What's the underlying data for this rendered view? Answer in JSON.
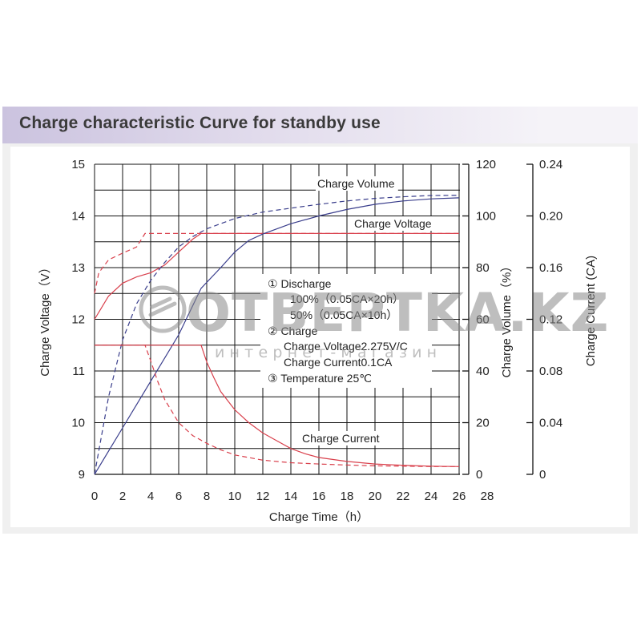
{
  "header": {
    "title": "Charge characteristic Curve for standby use"
  },
  "watermark": {
    "brand": "OTBEPTKA.KZ",
    "sub": "интернет-магазин"
  },
  "colors": {
    "voltage": "#d9404c",
    "volume": "#3a3e8c",
    "current": "#d9404c",
    "grid": "#111111",
    "header": "#cbc3df"
  },
  "chart_data": {
    "type": "line",
    "title": "Charge characteristic Curve for standby use",
    "xlabel": "Charge Time（h）",
    "x_ticks": [
      0,
      2,
      4,
      6,
      8,
      10,
      12,
      14,
      16,
      18,
      20,
      22,
      24,
      26,
      28
    ],
    "xlim": [
      0,
      26
    ],
    "y_left": {
      "label": "Charge Voltage（V）",
      "range": [
        9,
        15
      ],
      "ticks": [
        9,
        10,
        11,
        12,
        13,
        14,
        15
      ]
    },
    "y_right_1": {
      "label": "Charge Volume（%）",
      "range": [
        0,
        120
      ],
      "ticks": [
        0,
        20,
        40,
        60,
        80,
        100,
        120
      ]
    },
    "y_right_2": {
      "label": "Charge Current (CA)",
      "range": [
        0,
        0.24
      ],
      "ticks": [
        "0",
        "0.04",
        "0.08",
        "0.12",
        "0.16",
        "0.20",
        "0.24"
      ]
    },
    "grid": true,
    "curve_labels": [
      "Charge Volume",
      "Charge Voltage",
      "Charge Current"
    ],
    "annotations": [
      "① Discharge",
      "100%（0.05CA×20h）",
      "50%（0.05CA×10h）",
      "② Charge",
      "Charge Voltage2.275V/C",
      "Charge Current0.1CA",
      "③ Temperature 25℃"
    ],
    "series": [
      {
        "curve": "Charge Voltage",
        "discharge": "100%",
        "dash": false,
        "axis": "left",
        "points": [
          [
            0,
            12.0
          ],
          [
            1,
            12.45
          ],
          [
            2,
            12.7
          ],
          [
            3,
            12.82
          ],
          [
            4,
            12.9
          ],
          [
            5,
            13.05
          ],
          [
            6,
            13.3
          ],
          [
            7,
            13.55
          ],
          [
            7.6,
            13.66
          ],
          [
            9,
            13.66
          ],
          [
            12,
            13.66
          ],
          [
            16,
            13.66
          ],
          [
            20,
            13.66
          ],
          [
            24,
            13.66
          ],
          [
            26,
            13.66
          ]
        ]
      },
      {
        "curve": "Charge Voltage",
        "discharge": "50%",
        "dash": true,
        "axis": "left",
        "points": [
          [
            0,
            12.5
          ],
          [
            0.3,
            12.9
          ],
          [
            1,
            13.15
          ],
          [
            2,
            13.28
          ],
          [
            3,
            13.4
          ],
          [
            3.6,
            13.66
          ],
          [
            6,
            13.66
          ],
          [
            10,
            13.66
          ],
          [
            16,
            13.66
          ],
          [
            22,
            13.66
          ],
          [
            26,
            13.66
          ]
        ]
      },
      {
        "curve": "Charge Volume",
        "discharge": "100%",
        "dash": false,
        "axis": "right_1",
        "points": [
          [
            0,
            0
          ],
          [
            2,
            18
          ],
          [
            4,
            36
          ],
          [
            6,
            54
          ],
          [
            7.6,
            72
          ],
          [
            9,
            80
          ],
          [
            10,
            86
          ],
          [
            11,
            90.5
          ],
          [
            12,
            93
          ],
          [
            14,
            97
          ],
          [
            16,
            100
          ],
          [
            18,
            102.5
          ],
          [
            20,
            104.5
          ],
          [
            22,
            105.8
          ],
          [
            24,
            106.6
          ],
          [
            26,
            107
          ]
        ]
      },
      {
        "curve": "Charge Volume",
        "discharge": "50%",
        "dash": true,
        "axis": "right_1",
        "points": [
          [
            0,
            0
          ],
          [
            1,
            30
          ],
          [
            2,
            52
          ],
          [
            3,
            66
          ],
          [
            4,
            75
          ],
          [
            5,
            82
          ],
          [
            6,
            88
          ],
          [
            7,
            92
          ],
          [
            8,
            95
          ],
          [
            10,
            99
          ],
          [
            12,
            101.5
          ],
          [
            14,
            103
          ],
          [
            16,
            104.5
          ],
          [
            18,
            105.8
          ],
          [
            20,
            106.8
          ],
          [
            22,
            107.4
          ],
          [
            24,
            107.9
          ],
          [
            26,
            108
          ]
        ]
      },
      {
        "curve": "Charge Current",
        "discharge": "100%",
        "dash": false,
        "axis": "right_2",
        "points": [
          [
            0,
            0.1
          ],
          [
            7.6,
            0.1
          ],
          [
            8,
            0.087
          ],
          [
            8.5,
            0.075
          ],
          [
            9,
            0.064
          ],
          [
            10,
            0.05
          ],
          [
            11,
            0.04
          ],
          [
            12,
            0.032
          ],
          [
            13,
            0.026
          ],
          [
            14,
            0.02
          ],
          [
            15,
            0.016
          ],
          [
            16,
            0.013
          ],
          [
            18,
            0.01
          ],
          [
            20,
            0.008
          ],
          [
            22,
            0.007
          ],
          [
            24,
            0.0063
          ],
          [
            26,
            0.006
          ]
        ]
      },
      {
        "curve": "Charge Current",
        "discharge": "50%",
        "dash": true,
        "axis": "right_2",
        "points": [
          [
            0,
            0.1
          ],
          [
            3.6,
            0.1
          ],
          [
            4,
            0.088
          ],
          [
            4.5,
            0.072
          ],
          [
            5,
            0.058
          ],
          [
            6,
            0.04
          ],
          [
            7,
            0.03
          ],
          [
            8,
            0.024
          ],
          [
            9,
            0.019
          ],
          [
            10,
            0.015
          ],
          [
            12,
            0.011
          ],
          [
            14,
            0.009
          ],
          [
            16,
            0.008
          ],
          [
            18,
            0.0072
          ],
          [
            20,
            0.0066
          ],
          [
            22,
            0.0063
          ],
          [
            24,
            0.006
          ],
          [
            26,
            0.006
          ]
        ]
      }
    ]
  }
}
